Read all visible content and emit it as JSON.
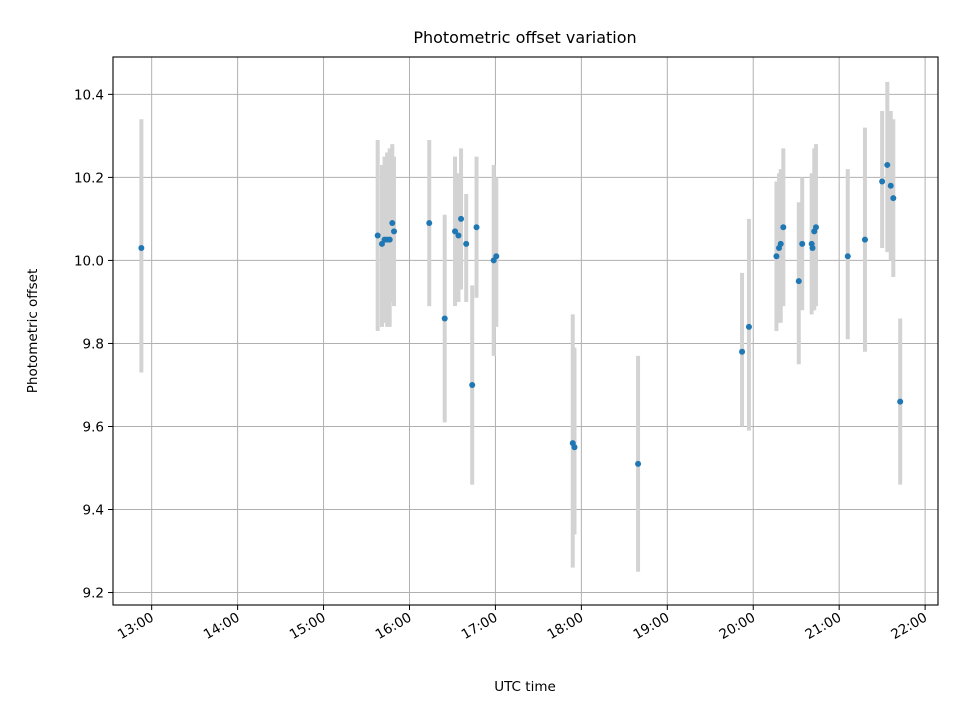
{
  "chart_data": {
    "type": "scatter",
    "title": "Photometric offset variation",
    "xlabel": "UTC time",
    "ylabel": "Photometric offset",
    "x_unit": "hours UTC",
    "xlim": [
      12.55,
      22.15
    ],
    "ylim": [
      9.17,
      10.49
    ],
    "x_ticks": [
      13,
      14,
      15,
      16,
      17,
      18,
      19,
      20,
      21,
      22
    ],
    "x_tick_labels": [
      "13:00",
      "14:00",
      "15:00",
      "16:00",
      "17:00",
      "18:00",
      "19:00",
      "20:00",
      "21:00",
      "22:00"
    ],
    "y_ticks": [
      9.2,
      9.4,
      9.6,
      9.8,
      10.0,
      10.2,
      10.4
    ],
    "y_tick_labels": [
      "9.2",
      "9.4",
      "9.6",
      "9.8",
      "10.0",
      "10.2",
      "10.4"
    ],
    "grid": true,
    "colors": {
      "marker": "#1f77b4",
      "errorbar": "#d3d3d3",
      "grid": "#b0b0b0"
    },
    "series": [
      {
        "points": [
          {
            "x": 12.88,
            "y": 10.03,
            "low": 9.73,
            "high": 10.34
          },
          {
            "x": 15.63,
            "y": 10.06,
            "low": 9.83,
            "high": 10.29
          },
          {
            "x": 15.68,
            "y": 10.04,
            "low": 9.84,
            "high": 10.23
          },
          {
            "x": 15.71,
            "y": 10.05,
            "low": 9.85,
            "high": 10.25
          },
          {
            "x": 15.74,
            "y": 10.05,
            "low": 9.84,
            "high": 10.26
          },
          {
            "x": 15.77,
            "y": 10.05,
            "low": 9.84,
            "high": 10.27
          },
          {
            "x": 15.8,
            "y": 10.09,
            "low": 9.9,
            "high": 10.28
          },
          {
            "x": 15.82,
            "y": 10.07,
            "low": 9.89,
            "high": 10.25
          },
          {
            "x": 16.23,
            "y": 10.09,
            "low": 9.89,
            "high": 10.29
          },
          {
            "x": 16.41,
            "y": 9.86,
            "low": 9.61,
            "high": 10.11
          },
          {
            "x": 16.53,
            "y": 10.07,
            "low": 9.89,
            "high": 10.25
          },
          {
            "x": 16.57,
            "y": 10.06,
            "low": 9.9,
            "high": 10.21
          },
          {
            "x": 16.6,
            "y": 10.1,
            "low": 9.93,
            "high": 10.27
          },
          {
            "x": 16.66,
            "y": 10.04,
            "low": 9.9,
            "high": 10.16
          },
          {
            "x": 16.73,
            "y": 9.7,
            "low": 9.46,
            "high": 9.94
          },
          {
            "x": 16.78,
            "y": 10.08,
            "low": 9.91,
            "high": 10.25
          },
          {
            "x": 16.98,
            "y": 10.0,
            "low": 9.77,
            "high": 10.23
          },
          {
            "x": 17.01,
            "y": 10.01,
            "low": 9.84,
            "high": 10.2
          },
          {
            "x": 17.9,
            "y": 9.56,
            "low": 9.26,
            "high": 9.87
          },
          {
            "x": 17.92,
            "y": 9.55,
            "low": 9.34,
            "high": 9.79
          },
          {
            "x": 18.66,
            "y": 9.51,
            "low": 9.25,
            "high": 9.77
          },
          {
            "x": 19.87,
            "y": 9.78,
            "low": 9.6,
            "high": 9.97
          },
          {
            "x": 19.95,
            "y": 9.84,
            "low": 9.59,
            "high": 10.1
          },
          {
            "x": 20.27,
            "y": 10.01,
            "low": 9.83,
            "high": 10.19
          },
          {
            "x": 20.3,
            "y": 10.03,
            "low": 9.85,
            "high": 10.21
          },
          {
            "x": 20.32,
            "y": 10.04,
            "low": 9.85,
            "high": 10.22
          },
          {
            "x": 20.35,
            "y": 10.08,
            "low": 9.89,
            "high": 10.27
          },
          {
            "x": 20.53,
            "y": 9.95,
            "low": 9.75,
            "high": 10.14
          },
          {
            "x": 20.57,
            "y": 10.04,
            "low": 9.88,
            "high": 10.2
          },
          {
            "x": 20.68,
            "y": 10.04,
            "low": 9.87,
            "high": 10.21
          },
          {
            "x": 20.69,
            "y": 10.03,
            "low": 9.89,
            "high": 10.17
          },
          {
            "x": 20.71,
            "y": 10.07,
            "low": 9.88,
            "high": 10.27
          },
          {
            "x": 20.73,
            "y": 10.08,
            "low": 9.89,
            "high": 10.28
          },
          {
            "x": 21.1,
            "y": 10.01,
            "low": 9.81,
            "high": 10.22
          },
          {
            "x": 21.3,
            "y": 10.05,
            "low": 9.78,
            "high": 10.32
          },
          {
            "x": 21.5,
            "y": 10.19,
            "low": 10.03,
            "high": 10.36
          },
          {
            "x": 21.56,
            "y": 10.23,
            "low": 10.02,
            "high": 10.43
          },
          {
            "x": 21.6,
            "y": 10.18,
            "low": 10.0,
            "high": 10.36
          },
          {
            "x": 21.63,
            "y": 10.15,
            "low": 9.96,
            "high": 10.34
          },
          {
            "x": 21.71,
            "y": 9.66,
            "low": 9.46,
            "high": 9.86
          }
        ]
      }
    ]
  }
}
